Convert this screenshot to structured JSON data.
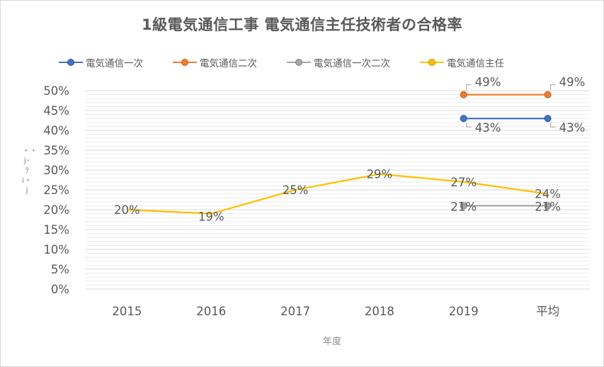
{
  "chart_data": {
    "type": "line",
    "title": "1級電気通信工事 電気通信主任技術者の合格率",
    "xlabel": "年度",
    "ylabel": "・・j･ｦi・j",
    "categories": [
      "2015",
      "2016",
      "2017",
      "2018",
      "2019",
      "平均"
    ],
    "ylim": [
      0,
      0.5
    ],
    "yticks": [
      "0%",
      "5%",
      "10%",
      "15%",
      "20%",
      "25%",
      "30%",
      "35%",
      "40%",
      "45%",
      "50%"
    ],
    "legend_position": "top",
    "grid": true,
    "series": [
      {
        "name": "電気通信一次",
        "color": "#4472c4",
        "values": [
          null,
          null,
          null,
          null,
          0.43,
          0.43
        ],
        "labels": [
          null,
          null,
          null,
          null,
          "43%",
          "43%"
        ]
      },
      {
        "name": "電気通信二次",
        "color": "#ed7d31",
        "values": [
          null,
          null,
          null,
          null,
          0.49,
          0.49
        ],
        "labels": [
          null,
          null,
          null,
          null,
          "49%",
          "49%"
        ]
      },
      {
        "name": "電気通信一次二次",
        "color": "#a5a5a5",
        "values": [
          null,
          null,
          null,
          null,
          0.21,
          0.21
        ],
        "labels": [
          null,
          null,
          null,
          null,
          "21%",
          "21%"
        ]
      },
      {
        "name": "電気通信主任",
        "color": "#ffc000",
        "values": [
          0.2,
          0.19,
          0.25,
          0.29,
          0.27,
          0.24
        ],
        "labels": [
          "20%",
          "19%",
          "25%",
          "29%",
          "27%",
          "24%"
        ]
      }
    ]
  }
}
